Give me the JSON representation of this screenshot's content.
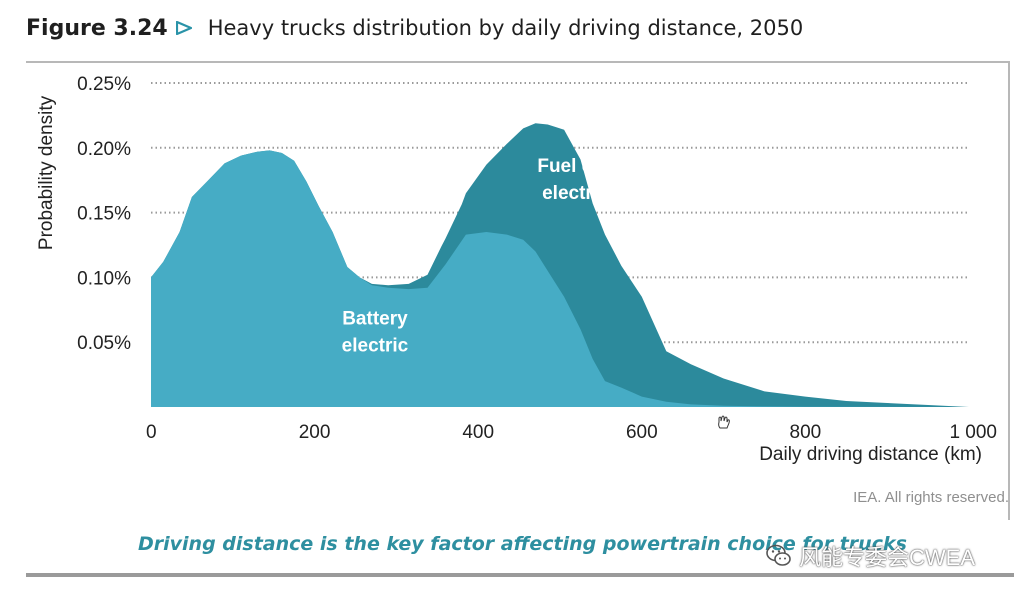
{
  "header": {
    "figure_label": "Figure 3.24",
    "title": "Heavy trucks distribution by daily driving distance, 2050"
  },
  "footer": {
    "credit": "IEA. All rights reserved.",
    "caption": "Driving distance is the key factor affecting powertrain choice for trucks",
    "watermark": "风能专委会CWEA"
  },
  "colors": {
    "battery": "#46acc5",
    "fuel_cell": "#2c8a9c",
    "arrow": "#2a93a8",
    "grid": "#9a9a9a",
    "caption": "#2e8fa0"
  },
  "chart_data": {
    "type": "area",
    "stacked": true,
    "xlabel": "Daily driving distance (km)",
    "ylabel": "Probability density",
    "xlim": [
      0,
      1000
    ],
    "ylim": [
      0,
      0.25
    ],
    "x_ticks": [
      {
        "value": 0,
        "label": "0"
      },
      {
        "value": 200,
        "label": "200"
      },
      {
        "value": 400,
        "label": "400"
      },
      {
        "value": 600,
        "label": "600"
      },
      {
        "value": 800,
        "label": "800"
      },
      {
        "value": 1000,
        "label": "1 000"
      }
    ],
    "y_ticks": [
      {
        "value": 0.05,
        "label": "0.05%"
      },
      {
        "value": 0.1,
        "label": "0.10%"
      },
      {
        "value": 0.15,
        "label": "0.15%"
      },
      {
        "value": 0.2,
        "label": "0.20%"
      },
      {
        "value": 0.25,
        "label": "0.25%"
      }
    ],
    "grid": "horizontal dotted",
    "series": [
      {
        "name": "Battery electric",
        "label_lines": [
          "Battery",
          "electric"
        ],
        "label_at": [
          220,
          0.045
        ],
        "points": [
          [
            0,
            0.1
          ],
          [
            15,
            0.112
          ],
          [
            35,
            0.135
          ],
          [
            50,
            0.162
          ],
          [
            70,
            0.175
          ],
          [
            90,
            0.188
          ],
          [
            110,
            0.194
          ],
          [
            130,
            0.197
          ],
          [
            145,
            0.198
          ],
          [
            160,
            0.196
          ],
          [
            175,
            0.19
          ],
          [
            190,
            0.174
          ],
          [
            205,
            0.155
          ],
          [
            222,
            0.135
          ],
          [
            240,
            0.108
          ],
          [
            255,
            0.1
          ],
          [
            270,
            0.094
          ],
          [
            290,
            0.092
          ],
          [
            315,
            0.091
          ],
          [
            338,
            0.092
          ],
          [
            360,
            0.11
          ],
          [
            385,
            0.133
          ],
          [
            410,
            0.135
          ],
          [
            435,
            0.133
          ],
          [
            455,
            0.129
          ],
          [
            470,
            0.12
          ],
          [
            485,
            0.105
          ],
          [
            505,
            0.085
          ],
          [
            525,
            0.06
          ],
          [
            540,
            0.037
          ],
          [
            555,
            0.02
          ],
          [
            575,
            0.015
          ],
          [
            600,
            0.008
          ],
          [
            630,
            0.004
          ],
          [
            660,
            0.002
          ],
          [
            700,
            0.001
          ],
          [
            750,
            0.0005
          ],
          [
            800,
            0.0002
          ],
          [
            900,
            0.0001
          ],
          [
            1000,
            0.0
          ]
        ]
      },
      {
        "name": "Fuel cell electric",
        "label_lines": [
          "Fuel cell",
          "electric"
        ],
        "label_at": [
          465,
          0.163
        ],
        "points": [
          [
            0,
            0
          ],
          [
            255,
            0
          ],
          [
            270,
            0.001
          ],
          [
            290,
            0.002
          ],
          [
            315,
            0.004
          ],
          [
            338,
            0.01
          ],
          [
            355,
            0.018
          ],
          [
            380,
            0.028
          ],
          [
            410,
            0.052
          ],
          [
            435,
            0.07
          ],
          [
            455,
            0.086
          ],
          [
            470,
            0.099
          ],
          [
            485,
            0.113
          ],
          [
            505,
            0.129
          ],
          [
            525,
            0.131
          ],
          [
            540,
            0.12
          ],
          [
            555,
            0.113
          ],
          [
            575,
            0.094
          ],
          [
            600,
            0.077
          ],
          [
            630,
            0.039
          ],
          [
            660,
            0.031
          ],
          [
            700,
            0.021
          ],
          [
            750,
            0.0115
          ],
          [
            800,
            0.0078
          ],
          [
            850,
            0.0045
          ],
          [
            900,
            0.003
          ],
          [
            950,
            0.0015
          ],
          [
            1000,
            0.0
          ]
        ]
      }
    ]
  }
}
